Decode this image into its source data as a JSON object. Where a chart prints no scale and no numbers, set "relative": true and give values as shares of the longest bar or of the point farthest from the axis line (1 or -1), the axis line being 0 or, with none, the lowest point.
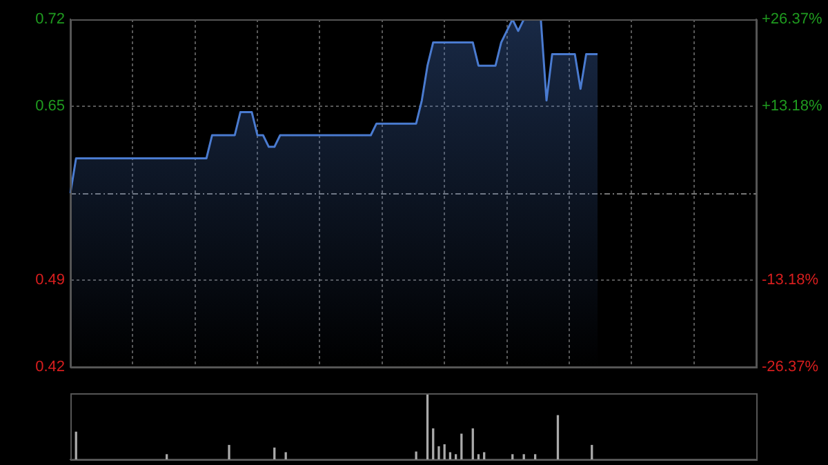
{
  "chart_data": [
    {
      "type": "area",
      "categories": [
        null,
        null,
        null,
        null,
        null,
        null,
        null,
        null,
        null,
        null,
        null,
        null,
        null,
        null,
        null,
        null,
        null,
        null,
        null,
        null,
        null,
        null,
        null,
        null,
        null,
        null,
        null,
        null,
        null,
        null,
        null,
        null,
        null,
        null,
        null,
        null,
        null,
        null,
        null,
        null,
        null,
        null,
        null,
        null,
        null,
        null,
        null,
        null,
        null,
        null,
        null,
        null,
        null,
        null,
        null,
        null,
        null,
        null,
        null,
        null,
        null,
        null,
        null,
        null,
        null,
        null,
        null,
        null,
        null,
        null,
        null,
        null,
        null,
        null,
        null,
        null,
        null,
        null,
        null,
        null,
        null,
        null,
        null,
        null,
        null,
        null,
        null,
        null,
        null,
        null,
        null,
        null,
        null,
        null,
        null,
        null,
        null,
        null,
        null,
        null,
        null,
        null,
        null,
        null,
        null,
        null,
        null,
        null,
        null,
        null,
        null,
        null,
        null,
        null,
        null,
        null,
        null,
        null,
        null,
        null,
        null,
        null
      ],
      "series": [
        {
          "color": "#4a7bd0",
          "values": [
            0.57,
            0.6,
            0.6,
            0.6,
            0.6,
            0.6,
            0.6,
            0.6,
            0.6,
            0.6,
            0.6,
            0.6,
            0.6,
            0.6,
            0.6,
            0.6,
            0.6,
            0.6,
            0.6,
            0.6,
            0.6,
            0.6,
            0.6,
            0.6,
            0.6,
            0.62,
            0.62,
            0.62,
            0.62,
            0.62,
            0.64,
            0.64,
            0.64,
            0.62,
            0.62,
            0.61,
            0.61,
            0.62,
            0.62,
            0.62,
            0.62,
            0.62,
            0.62,
            0.62,
            0.62,
            0.62,
            0.62,
            0.62,
            0.62,
            0.62,
            0.62,
            0.62,
            0.62,
            0.62,
            0.63,
            0.63,
            0.63,
            0.63,
            0.63,
            0.63,
            0.63,
            0.63,
            0.65,
            0.68,
            0.7,
            0.7,
            0.7,
            0.7,
            0.7,
            0.7,
            0.7,
            0.7,
            0.68,
            0.68,
            0.68,
            0.68,
            0.7,
            0.71,
            0.72,
            0.71,
            0.72,
            0.72,
            0.72,
            0.72,
            0.65,
            0.69,
            0.69,
            0.69,
            0.69,
            0.69,
            0.66,
            0.69,
            0.69,
            0.69,
            null,
            null,
            null,
            null,
            null,
            null,
            null,
            null,
            null,
            null,
            null,
            null,
            null,
            null,
            null,
            null,
            null,
            null,
            null,
            null,
            null,
            null,
            null,
            null,
            null,
            null,
            null,
            null
          ]
        }
      ],
      "ylim": [
        0.42,
        0.72
      ],
      "yticks": [
        {
          "value": 0.42,
          "label": "0.42"
        },
        {
          "value": 0.495,
          "label": "0.49"
        },
        {
          "value": 0.645,
          "label": "0.65"
        },
        {
          "value": 0.72,
          "label": "0.72"
        }
      ],
      "y2lim": [
        -26.37,
        26.37
      ],
      "y2ticks": [
        {
          "value": 26.37,
          "label": "+26.37%"
        },
        {
          "value": 13.18,
          "label": "+13.18%"
        },
        {
          "value": -13.18,
          "label": "-13.18%"
        },
        {
          "value": -26.37,
          "label": "-26.37%"
        }
      ],
      "ref_lines": [
        {
          "axis": "y",
          "value": 0.57
        }
      ],
      "grid": true,
      "legend": false,
      "marker": "none",
      "line_style": "solid"
    },
    {
      "type": "bar",
      "relative": true,
      "categories": [
        null,
        null,
        null,
        null,
        null,
        null,
        null,
        null,
        null,
        null,
        null,
        null,
        null,
        null,
        null,
        null,
        null,
        null,
        null,
        null,
        null,
        null,
        null,
        null,
        null,
        null,
        null,
        null,
        null,
        null,
        null,
        null,
        null,
        null,
        null,
        null,
        null,
        null,
        null,
        null,
        null,
        null,
        null,
        null,
        null,
        null,
        null,
        null,
        null,
        null,
        null,
        null,
        null,
        null,
        null,
        null,
        null,
        null,
        null,
        null,
        null,
        null,
        null,
        null,
        null,
        null,
        null,
        null,
        null,
        null,
        null,
        null,
        null,
        null,
        null,
        null,
        null,
        null,
        null,
        null,
        null,
        null,
        null,
        null,
        null,
        null,
        null,
        null,
        null,
        null,
        null,
        null,
        null,
        null,
        null,
        null,
        null,
        null,
        null,
        null,
        null,
        null,
        null,
        null,
        null,
        null,
        null,
        null,
        null,
        null,
        null,
        null,
        null,
        null,
        null,
        null,
        null,
        null,
        null,
        null,
        null,
        null
      ],
      "series": [
        {
          "color": "#aaaaaa",
          "values": [
            0,
            0.42,
            0,
            0,
            0,
            0,
            0,
            0,
            0,
            0,
            0,
            0,
            0,
            0,
            0,
            0,
            0,
            0.08,
            0,
            0,
            0,
            0,
            0,
            0,
            0,
            0,
            0,
            0,
            0.22,
            0,
            0,
            0,
            0,
            0,
            0,
            0,
            0.18,
            0,
            0.11,
            0,
            0,
            0,
            0,
            0,
            0,
            0,
            0,
            0,
            0,
            0,
            0,
            0,
            0,
            0,
            0,
            0,
            0,
            0,
            0,
            0,
            0,
            0.12,
            0,
            1,
            0.47,
            0.2,
            0.23,
            0.11,
            0.08,
            0.39,
            0,
            0.47,
            0.08,
            0.11,
            0,
            0,
            0,
            0,
            0.08,
            0,
            0.08,
            0,
            0.08,
            0,
            0,
            0,
            0.67,
            0,
            0,
            0,
            0,
            0,
            0.22,
            0,
            null,
            null,
            null,
            null,
            null,
            null,
            null,
            null,
            null,
            null,
            null,
            null,
            null,
            null,
            null,
            null,
            null,
            null,
            null,
            null,
            null,
            null,
            null,
            null,
            null,
            null,
            null,
            null
          ]
        }
      ],
      "legend": false
    }
  ]
}
